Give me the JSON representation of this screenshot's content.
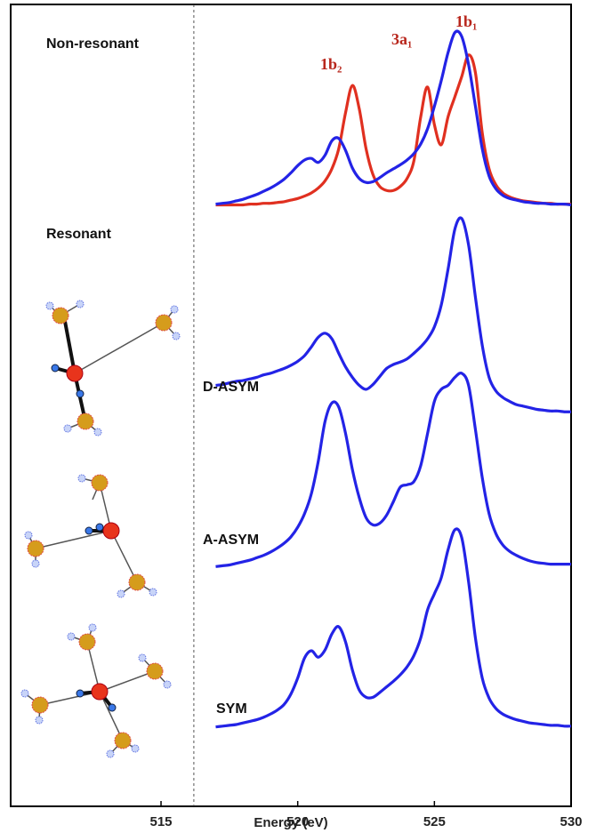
{
  "chart_data": {
    "type": "line",
    "xlabel": "Energy (eV)",
    "xlim": [
      509.5,
      530
    ],
    "xticks": [
      515,
      520,
      525,
      530
    ],
    "ylim": [
      0,
      100
    ],
    "vline": 516.2,
    "annotations": [
      "Non-resonant",
      "Resonant",
      "1b₂",
      "3a₁",
      "1b₁"
    ],
    "x": [
      517,
      517.25,
      517.5,
      517.75,
      518,
      518.25,
      518.5,
      518.75,
      519,
      519.25,
      519.5,
      519.75,
      520,
      520.25,
      520.5,
      520.75,
      521,
      521.25,
      521.5,
      521.75,
      522,
      522.25,
      522.5,
      522.75,
      523,
      523.25,
      523.5,
      523.75,
      524,
      524.25,
      524.5,
      524.75,
      525,
      525.25,
      525.5,
      525.75,
      526,
      526.25,
      526.5,
      526.75,
      527,
      527.25,
      527.5,
      527.75,
      528,
      528.25,
      528.5,
      528.75,
      529,
      529.25,
      529.5,
      529.75,
      530
    ],
    "series": [
      {
        "color": "#e03020",
        "values": [
          75.0,
          75.0,
          75.0,
          75.0,
          75.0,
          75.1,
          75.1,
          75.2,
          75.2,
          75.3,
          75.4,
          75.6,
          75.8,
          76.1,
          76.5,
          77.1,
          78.0,
          79.5,
          82.0,
          86.5,
          89.9,
          87.0,
          82.0,
          78.8,
          77.3,
          76.8,
          76.8,
          77.3,
          78.3,
          80.5,
          86.0,
          89.7,
          85.0,
          82.5,
          86.0,
          88.5,
          91.0,
          93.7,
          91.5,
          84.0,
          79.5,
          77.5,
          76.5,
          76.0,
          75.7,
          75.5,
          75.4,
          75.3,
          75.2,
          75.2,
          75.1,
          75.1,
          75.1
        ]
      },
      {
        "color": "#2323e6",
        "values": [
          75.1,
          75.2,
          75.3,
          75.5,
          75.7,
          76.0,
          76.3,
          76.7,
          77.1,
          77.6,
          78.2,
          79.0,
          79.9,
          80.6,
          80.8,
          80.3,
          81.2,
          83.0,
          83.3,
          81.8,
          79.6,
          78.3,
          77.8,
          77.9,
          78.4,
          79.0,
          79.5,
          80.0,
          80.6,
          81.4,
          82.6,
          84.5,
          87.3,
          90.5,
          94.0,
          96.5,
          96.0,
          92.5,
          87.3,
          82.0,
          78.6,
          77.0,
          76.2,
          75.8,
          75.6,
          75.4,
          75.3,
          75.2,
          75.2,
          75.1,
          75.1,
          75.1,
          75.0
        ]
      },
      {
        "name": "D-ASYM",
        "color": "#2323e6",
        "values": [
          52.5,
          52.6,
          52.8,
          53.0,
          53.1,
          53.3,
          53.5,
          53.8,
          54.0,
          54.3,
          54.6,
          55.0,
          55.5,
          56.2,
          57.3,
          58.5,
          59.0,
          58.3,
          56.5,
          54.8,
          53.5,
          52.5,
          52.0,
          52.6,
          53.6,
          54.6,
          55.1,
          55.4,
          55.8,
          56.5,
          57.3,
          58.3,
          59.8,
          62.5,
          67.0,
          72.0,
          73.3,
          70.0,
          63.5,
          57.5,
          53.5,
          51.8,
          51.0,
          50.5,
          50.1,
          49.9,
          49.7,
          49.5,
          49.4,
          49.3,
          49.3,
          49.2,
          49.2
        ]
      },
      {
        "name": "A-ASYM",
        "color": "#2323e6",
        "values": [
          29.9,
          30.0,
          30.1,
          30.3,
          30.5,
          30.7,
          31.0,
          31.3,
          31.7,
          32.2,
          32.8,
          33.6,
          34.8,
          36.5,
          39.0,
          43.0,
          48.0,
          50.3,
          49.8,
          46.5,
          42.0,
          38.5,
          36.0,
          35.1,
          35.3,
          36.3,
          38.0,
          39.8,
          40.1,
          40.5,
          42.5,
          46.5,
          50.5,
          52.0,
          52.5,
          53.5,
          54.0,
          52.5,
          47.0,
          41.0,
          36.5,
          34.0,
          32.6,
          31.8,
          31.3,
          30.9,
          30.6,
          30.4,
          30.3,
          30.2,
          30.2,
          30.2,
          30.2
        ]
      },
      {
        "name": "SYM",
        "color": "#2323e6",
        "values": [
          9.9,
          10.0,
          10.1,
          10.2,
          10.4,
          10.6,
          10.8,
          11.1,
          11.5,
          12.0,
          12.7,
          14.0,
          16.0,
          18.5,
          19.4,
          18.6,
          19.5,
          21.5,
          22.4,
          20.5,
          17.0,
          14.5,
          13.6,
          13.6,
          14.2,
          14.9,
          15.6,
          16.4,
          17.4,
          18.8,
          21.0,
          24.5,
          26.5,
          28.5,
          32.0,
          34.5,
          33.5,
          28.0,
          21.0,
          16.0,
          13.5,
          12.2,
          11.5,
          11.1,
          10.8,
          10.6,
          10.4,
          10.3,
          10.2,
          10.1,
          10.1,
          10.0,
          10.0
        ]
      }
    ]
  }
}
